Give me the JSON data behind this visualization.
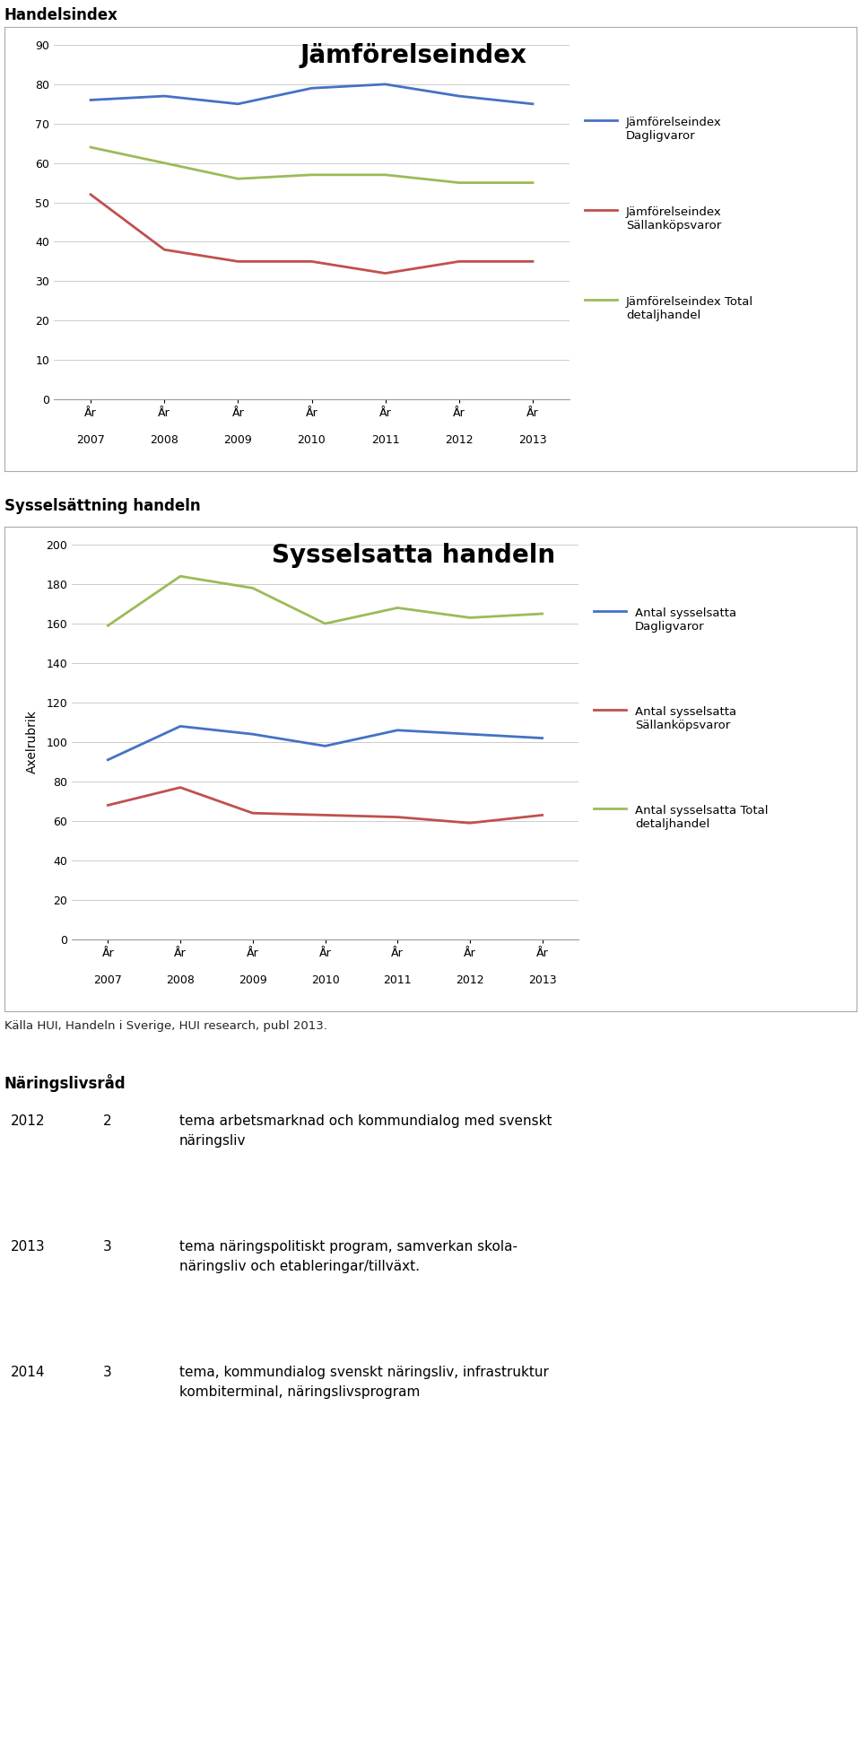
{
  "chart1_title": "Jämförelseindex",
  "chart1_years_top": [
    "År",
    "År",
    "År",
    "År",
    "År",
    "År",
    "År"
  ],
  "chart1_years_bot": [
    "2007",
    "2008",
    "2009",
    "2010",
    "2011",
    "2012",
    "2013"
  ],
  "chart1_blue": [
    76,
    77,
    75,
    79,
    80,
    77,
    75
  ],
  "chart1_red": [
    52,
    38,
    35,
    35,
    32,
    35,
    35
  ],
  "chart1_green": [
    64,
    60,
    56,
    57,
    57,
    55,
    55
  ],
  "chart1_ylim": [
    0,
    90
  ],
  "chart1_yticks": [
    0,
    10,
    20,
    30,
    40,
    50,
    60,
    70,
    80,
    90
  ],
  "chart1_legend": [
    "Jämförelseindex\nDagligvaror",
    "Jämförelseindex\nSällanköpsvaror",
    "Jämförelseindex Total\ndetaljhandel"
  ],
  "chart2_title": "Sysselsatta handeln",
  "chart2_years_top": [
    "År",
    "År",
    "År",
    "År",
    "År",
    "År",
    "År"
  ],
  "chart2_years_bot": [
    "2007",
    "2008",
    "2009",
    "2010",
    "2011",
    "2012",
    "2013"
  ],
  "chart2_blue": [
    91,
    108,
    104,
    98,
    106,
    104,
    102
  ],
  "chart2_red": [
    68,
    77,
    64,
    63,
    62,
    59,
    63
  ],
  "chart2_green": [
    159,
    184,
    178,
    160,
    168,
    163,
    165
  ],
  "chart2_ylim": [
    0,
    200
  ],
  "chart2_yticks": [
    0,
    20,
    40,
    60,
    80,
    100,
    120,
    140,
    160,
    180,
    200
  ],
  "chart2_ylabel": "Axelrubrik",
  "chart2_legend": [
    "Antal sysselsatta\nDagligvaror",
    "Antal sysselsatta\nSällanköpsvaror",
    "Antal sysselsatta Total\ndetaljhandel"
  ],
  "color_blue": "#4472C4",
  "color_red": "#C0504D",
  "color_green": "#9BBB59",
  "section1_title": "Handelsindex",
  "section2_title": "Sysselsättning handeln",
  "source_text": "Källa HUI, Handeln i Sverige, HUI research, publ 2013.",
  "section3_title": "Näringslivsråd",
  "table_data": [
    {
      "year": "2012",
      "num": "2",
      "text": "tema arbetsmarknad och kommundialog med svenskt\nnäringsliv"
    },
    {
      "year": "2013",
      "num": "3",
      "text": "tema näringspolitiskt program, samverkan skola-\nnäringsliv och etableringar/tillväxt."
    },
    {
      "year": "2014",
      "num": "3",
      "text": "tema, kommundialog svenskt näringsliv, infrastruktur\nkombiterminal, näringslivsprogram"
    }
  ],
  "bg_color": "#FFFFFF"
}
